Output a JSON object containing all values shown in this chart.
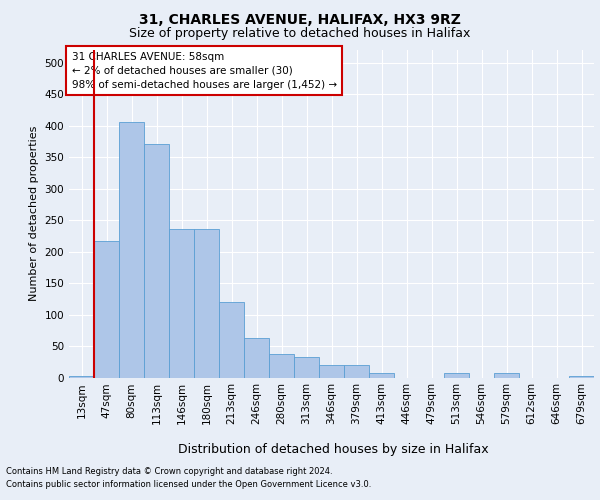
{
  "title_line1": "31, CHARLES AVENUE, HALIFAX, HX3 9RZ",
  "title_line2": "Size of property relative to detached houses in Halifax",
  "xlabel": "Distribution of detached houses by size in Halifax",
  "ylabel": "Number of detached properties",
  "categories": [
    "13sqm",
    "47sqm",
    "80sqm",
    "113sqm",
    "146sqm",
    "180sqm",
    "213sqm",
    "246sqm",
    "280sqm",
    "313sqm",
    "346sqm",
    "379sqm",
    "413sqm",
    "446sqm",
    "479sqm",
    "513sqm",
    "546sqm",
    "579sqm",
    "612sqm",
    "646sqm",
    "679sqm"
  ],
  "values": [
    2,
    216,
    405,
    370,
    235,
    235,
    120,
    63,
    38,
    32,
    20,
    20,
    7,
    0,
    0,
    7,
    0,
    7,
    0,
    0,
    2
  ],
  "bar_color": "#aec6e8",
  "bar_edge_color": "#5a9fd4",
  "vline_color": "#cc0000",
  "vline_x_index": 1,
  "annotation_text": "31 CHARLES AVENUE: 58sqm\n← 2% of detached houses are smaller (30)\n98% of semi-detached houses are larger (1,452) →",
  "annotation_box_facecolor": "#ffffff",
  "annotation_box_edgecolor": "#cc0000",
  "ylim": [
    0,
    520
  ],
  "yticks": [
    0,
    50,
    100,
    150,
    200,
    250,
    300,
    350,
    400,
    450,
    500
  ],
  "footer_line1": "Contains HM Land Registry data © Crown copyright and database right 2024.",
  "footer_line2": "Contains public sector information licensed under the Open Government Licence v3.0.",
  "background_color": "#e8eef7",
  "plot_background_color": "#e8eef7",
  "grid_color": "#ffffff",
  "title1_fontsize": 10,
  "title2_fontsize": 9,
  "tick_fontsize": 7.5,
  "ylabel_fontsize": 8,
  "xlabel_fontsize": 9,
  "footer_fontsize": 6,
  "annot_fontsize": 7.5
}
